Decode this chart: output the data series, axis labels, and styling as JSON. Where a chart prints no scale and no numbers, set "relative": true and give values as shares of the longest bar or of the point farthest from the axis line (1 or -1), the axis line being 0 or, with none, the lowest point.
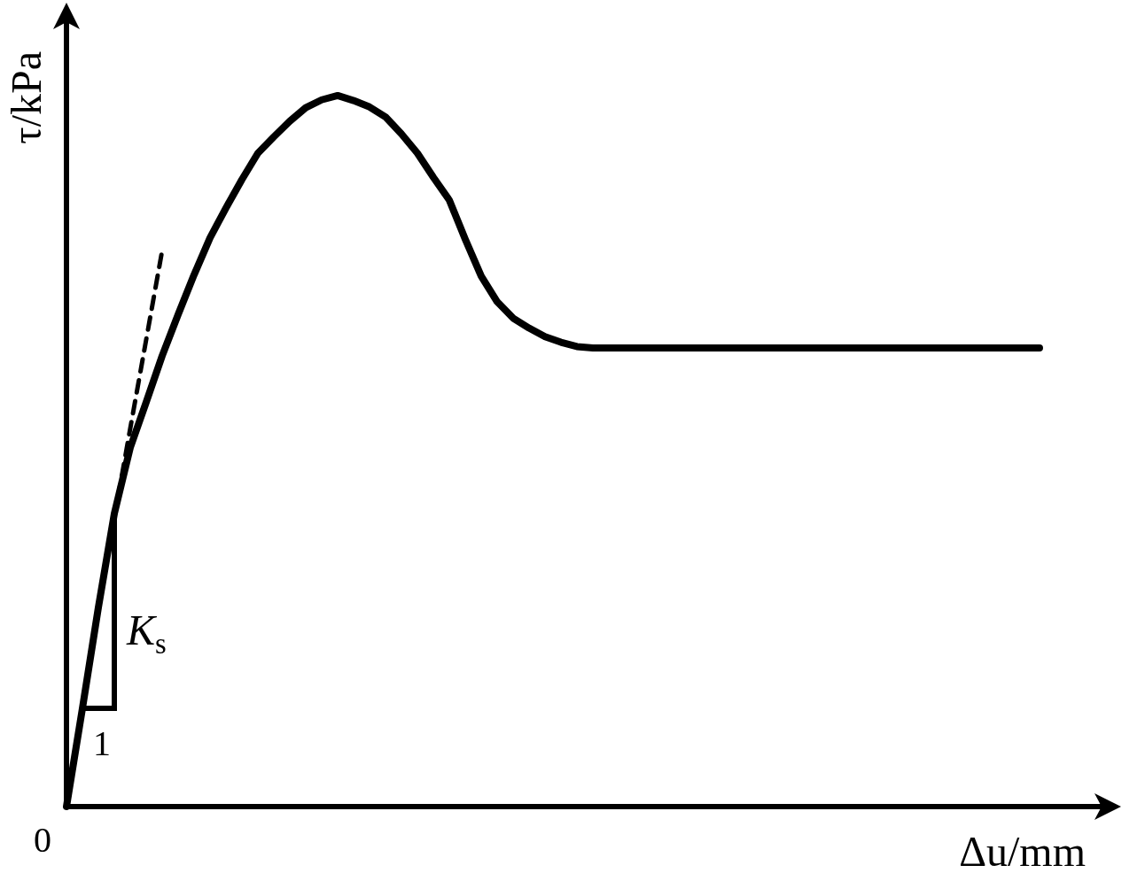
{
  "chart_data": {
    "type": "line",
    "xlabel": "Δu/mm",
    "ylabel": "τ/kPa",
    "relative": true,
    "categories": [
      null,
      null,
      null,
      null,
      null,
      null,
      null,
      null,
      null,
      null,
      null,
      null,
      null,
      null,
      null,
      null,
      null,
      null,
      null,
      null,
      null,
      null,
      null,
      null,
      null,
      null,
      null,
      null,
      null,
      null,
      null,
      null,
      null,
      null,
      null,
      null,
      null,
      null,
      null,
      null,
      null,
      null,
      null,
      null,
      null,
      null,
      null,
      null,
      null,
      null,
      null,
      null,
      null,
      null,
      null,
      null,
      null,
      null,
      null,
      null,
      null,
      null,
      null,
      null,
      null,
      null
    ],
    "series": [
      {
        "color": "#000000",
        "line_style": "solid",
        "values": [
          0,
          0.138,
          0.28,
          0.412,
          0.505,
          0.569,
          0.634,
          0.692,
          0.748,
          0.8,
          0.842,
          0.882,
          0.919,
          0.942,
          0.964,
          0.983,
          0.994,
          1,
          0.993,
          0.984,
          0.97,
          0.946,
          0.919,
          0.885,
          0.853,
          0.798,
          0.746,
          0.71,
          0.687,
          0.673,
          0.661,
          0.653,
          0.647,
          0.645,
          0.645,
          0.645,
          0.645,
          0.645,
          0.645,
          0.645,
          0.645,
          0.645,
          0.645,
          0.645,
          0.645,
          0.645,
          0.645,
          0.645,
          0.645,
          0.645,
          0.645,
          0.645,
          0.645,
          0.645,
          0.645,
          0.645,
          0.645,
          0.645,
          0.645,
          0.645,
          0.645,
          0.645,
          null,
          null,
          null,
          null
        ]
      },
      {
        "color": "#000000",
        "line_style": "dashed",
        "values": [
          null,
          null,
          null,
          0.406,
          0.532,
          0.657,
          0.782,
          null,
          null,
          null,
          null,
          null,
          null,
          null,
          null,
          null,
          null,
          null,
          null,
          null,
          null,
          null,
          null,
          null,
          null,
          null,
          null,
          null,
          null,
          null,
          null,
          null,
          null,
          null,
          null,
          null,
          null,
          null,
          null,
          null,
          null,
          null,
          null,
          null,
          null,
          null,
          null,
          null,
          null,
          null,
          null,
          null,
          null,
          null,
          null,
          null,
          null,
          null,
          null,
          null,
          null,
          null,
          null,
          null,
          null,
          null
        ]
      }
    ],
    "annotations": [
      "K$_{s}$",
      "1",
      "0"
    ],
    "marker": "none",
    "grid": false
  }
}
